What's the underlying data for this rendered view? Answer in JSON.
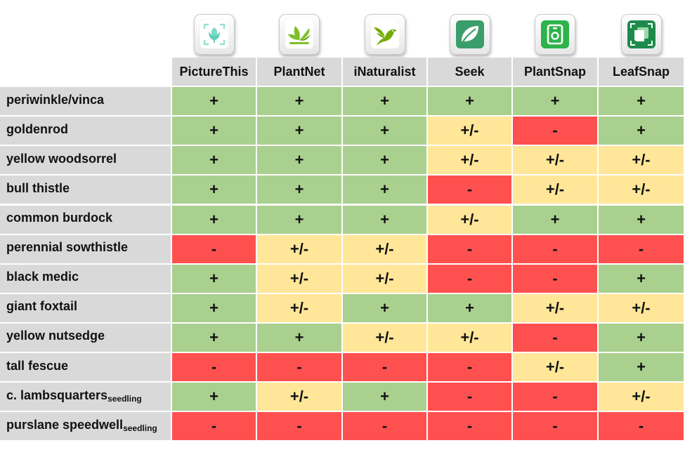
{
  "chart_data": {
    "type": "table",
    "columns": [
      {
        "name": "PictureThis",
        "icon": "picturethis-icon"
      },
      {
        "name": "PlantNet",
        "icon": "plantnet-icon"
      },
      {
        "name": "iNaturalist",
        "icon": "inaturalist-icon"
      },
      {
        "name": "Seek",
        "icon": "seek-icon"
      },
      {
        "name": "PlantSnap",
        "icon": "plantsnap-icon"
      },
      {
        "name": "LeafSnap",
        "icon": "leafsnap-icon"
      }
    ],
    "rows": [
      {
        "name": "periwinkle/vinca",
        "suffix": "",
        "values": [
          "+",
          "+",
          "+",
          "+",
          "+",
          "+"
        ]
      },
      {
        "name": "goldenrod",
        "suffix": "",
        "values": [
          "+",
          "+",
          "+",
          "+/-",
          "-",
          "+"
        ]
      },
      {
        "name": "yellow woodsorrel",
        "suffix": "",
        "values": [
          "+",
          "+",
          "+",
          "+/-",
          "+/-",
          "+/-"
        ]
      },
      {
        "name": "bull thistle",
        "suffix": "",
        "values": [
          "+",
          "+",
          "+",
          "-",
          "+/-",
          "+/-"
        ]
      },
      {
        "name": "common burdock",
        "suffix": "",
        "values": [
          "+",
          "+",
          "+",
          "+/-",
          "+",
          "+"
        ]
      },
      {
        "name": "perennial sowthistle",
        "suffix": "",
        "values": [
          "-",
          "+/-",
          "+/-",
          "-",
          "-",
          "-"
        ]
      },
      {
        "name": "black medic",
        "suffix": "",
        "values": [
          "+",
          "+/-",
          "+/-",
          "-",
          "-",
          "+"
        ]
      },
      {
        "name": "giant foxtail",
        "suffix": "",
        "values": [
          "+",
          "+/-",
          "+",
          "+",
          "+/-",
          "+/-"
        ]
      },
      {
        "name": "yellow nutsedge",
        "suffix": "",
        "values": [
          "+",
          "+",
          "+/-",
          "+/-",
          "-",
          "+"
        ]
      },
      {
        "name": "tall fescue",
        "suffix": "",
        "values": [
          "-",
          "-",
          "-",
          "-",
          "+/-",
          "+"
        ]
      },
      {
        "name": "c. lambsquarters",
        "suffix": "seedling",
        "values": [
          "+",
          "+/-",
          "+",
          "-",
          "-",
          "+/-"
        ]
      },
      {
        "name": "purslane speedwell",
        "suffix": "seedling",
        "values": [
          "-",
          "-",
          "-",
          "-",
          "-",
          "-"
        ]
      }
    ],
    "value_colors": {
      "+": "#a9d08e",
      "+/-": "#ffe699",
      "-": "#ff5050"
    },
    "header_color": "#d9d9d9"
  }
}
